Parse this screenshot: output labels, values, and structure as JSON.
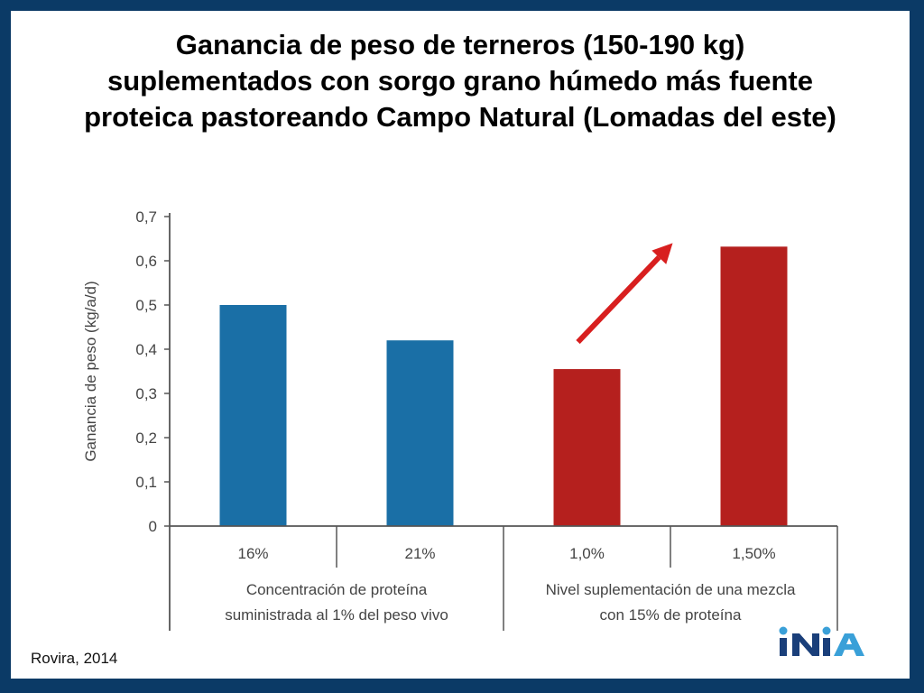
{
  "title_lines": [
    "Ganancia de peso de terneros (150-190 kg)",
    "suplementados con sorgo grano húmedo más fuente",
    "proteica pastoreando Campo Natural (Lomadas del este)"
  ],
  "chart_data": {
    "type": "bar",
    "title": "",
    "ylabel": "Ganancia de peso (kg/a/d)",
    "xlabel": "",
    "ylim": [
      0,
      0.7
    ],
    "yticks": [
      "0",
      "0,1",
      "0,2",
      "0,3",
      "0,4",
      "0,5",
      "0,6",
      "0,7"
    ],
    "categories": [
      "16%",
      "21%",
      "1,0%",
      "1,50%"
    ],
    "values": [
      0.5,
      0.42,
      0.355,
      0.632
    ],
    "bar_colors": [
      "#1a6fa6",
      "#1a6fa6",
      "#b5201e",
      "#b5201e"
    ],
    "groups": [
      {
        "label_lines": [
          "Concentración de proteína",
          "suministrada al 1% del peso vivo"
        ],
        "span": [
          0,
          1
        ]
      },
      {
        "label_lines": [
          "Nivel suplementación de una mezcla",
          "con 15% de proteína"
        ],
        "span": [
          2,
          3
        ]
      }
    ],
    "annotation": {
      "type": "arrow",
      "color": "#d81f1f",
      "from_category": 2,
      "to_category": 3
    }
  },
  "source": "Rovira, 2014",
  "logo": {
    "text": "INIA",
    "colors": [
      "#1a3f7a",
      "#3aa0d8"
    ]
  }
}
